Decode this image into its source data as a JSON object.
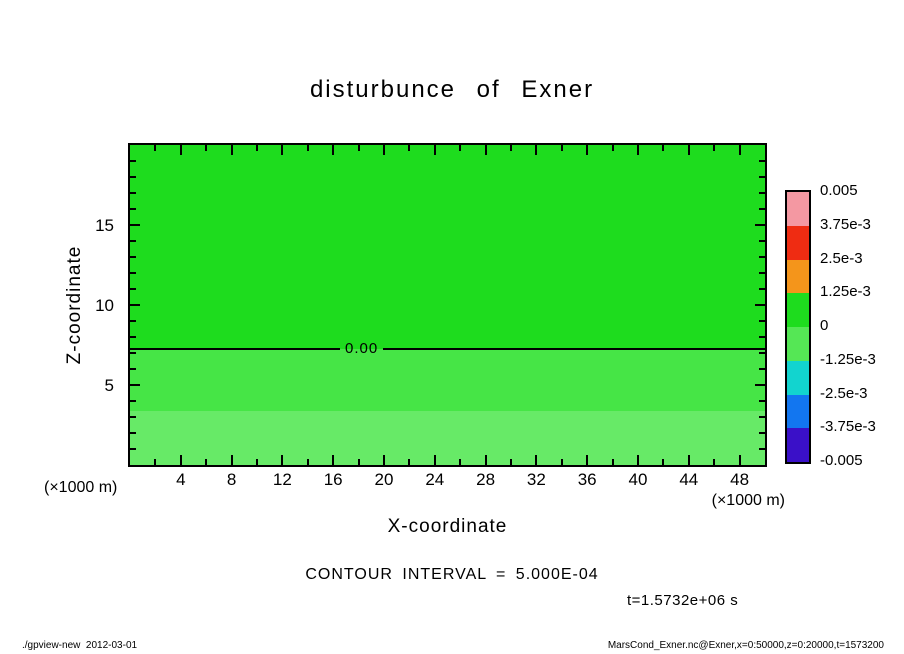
{
  "title": "disturbunce of Exner",
  "axes": {
    "x_label": "X-coordinate",
    "y_label": "Z-coordinate",
    "x_unit_left": "(×1000 m)",
    "x_unit_right": "(×1000 m)"
  },
  "annotations": {
    "contour_interval": "CONTOUR INTERVAL = 5.000E-04",
    "time": "t=1.5732e+06 s"
  },
  "footer": {
    "left": "./gpview-new  2012-03-01",
    "right": "MarsCond_Exner.nc@Exner,x=0:50000,z=0:20000,t=1573200"
  },
  "chart_data": {
    "type": "heatmap",
    "title": "disturbunce of Exner",
    "xlabel": "X-coordinate",
    "ylabel": "Z-coordinate",
    "x_units": "(×1000 m)",
    "y_units": "(×1000 m)",
    "xlim": [
      0,
      50
    ],
    "ylim": [
      0,
      20
    ],
    "x_ticks": [
      4,
      8,
      12,
      16,
      20,
      24,
      28,
      32,
      36,
      40,
      44,
      48
    ],
    "y_ticks": [
      5,
      10,
      15
    ],
    "grid": false,
    "contour_interval": 0.0005,
    "zero_contour": {
      "label": "0.00",
      "z": 7.25
    },
    "bands": [
      {
        "z_from": 7.25,
        "z_to": 20,
        "value_from": 0,
        "value_to": 0.0005,
        "color": "#1edc1e"
      },
      {
        "z_from": 3.4,
        "z_to": 7.25,
        "value_from": -0.0005,
        "value_to": 0,
        "color": "#46e546"
      },
      {
        "z_from": 0,
        "z_to": 3.4,
        "value_from": -0.001,
        "value_to": -0.0005,
        "color": "#67ea67"
      }
    ],
    "colorbar": {
      "position": "right",
      "labels": [
        "0.005",
        "3.75e-3",
        "2.5e-3",
        "1.25e-3",
        "0",
        "-1.25e-3",
        "-2.5e-3",
        "-3.75e-3",
        "-0.005"
      ],
      "colors_top_to_bottom": [
        "#f498a2",
        "#ef2c12",
        "#f4951b",
        "#1edc1e",
        "#55e755",
        "#12d4cf",
        "#1276f0",
        "#3a10c8"
      ]
    }
  }
}
